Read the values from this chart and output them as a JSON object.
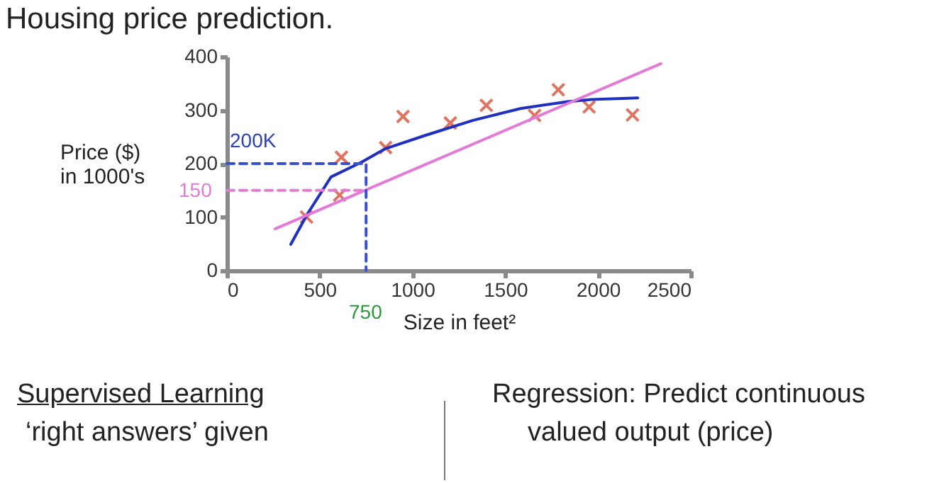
{
  "chart_data": {
    "type": "scatter",
    "title": "Housing price prediction.",
    "xlabel": "Size in feet²",
    "ylabel": "Price ($)\nin 1000's",
    "xlim": [
      0,
      2500
    ],
    "xticks": [
      0,
      500,
      1000,
      1500,
      2000,
      2500
    ],
    "ylim": [
      0,
      400
    ],
    "yticks": [
      0,
      100,
      200,
      300,
      400
    ],
    "grid": false,
    "series": [
      {
        "marker": "cross",
        "color": "#d43a1f",
        "x": [
          429,
          607,
          617,
          855,
          949,
          1204,
          1398,
          1658,
          1786,
          1952,
          2186
        ],
        "values": [
          100,
          141,
          212,
          230,
          288,
          276,
          309,
          290,
          338,
          306,
          291
        ]
      },
      {
        "type": "line",
        "color": "#1f2fbf",
        "x": [
          344,
          434,
          561,
          727,
          855,
          1071,
          1327,
          1582,
          1837,
          1964,
          2214
        ],
        "values": [
          49,
          106,
          175,
          203,
          228,
          253,
          281,
          303,
          316,
          320,
          323
        ]
      },
      {
        "type": "line",
        "color": "#e57ad6",
        "x": [
          260,
          2339
        ],
        "values": [
          78,
          387
        ]
      },
      {
        "type": "line",
        "color": "#3a4fd0",
        "line_style": "dashed",
        "x": [
          0,
          750,
          750
        ],
        "values": [
          200,
          200,
          0
        ]
      },
      {
        "type": "line",
        "color": "#e57ad6",
        "line_style": "dashed",
        "x": [
          0,
          750
        ],
        "values": [
          150,
          150
        ]
      }
    ],
    "annotations": [
      "200K",
      "150",
      "750",
      "Supervised Learning",
      "‘right answers’ given",
      "Regression: Predict continuous",
      "valued output (price)"
    ]
  }
}
